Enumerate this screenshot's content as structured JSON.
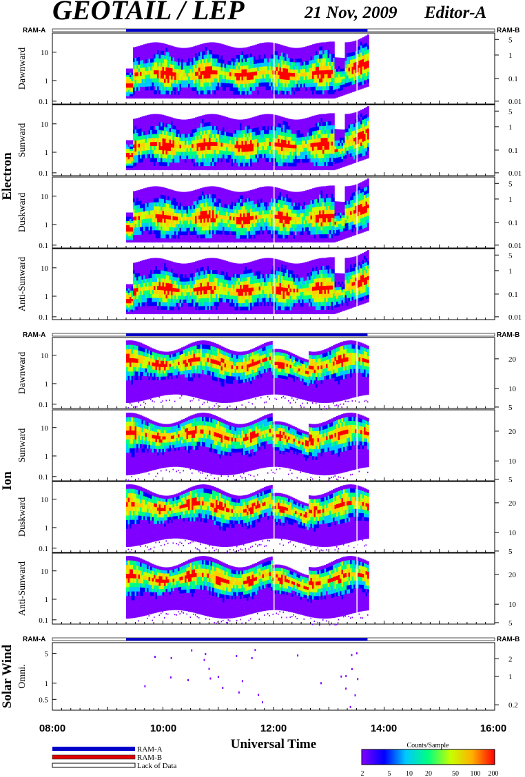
{
  "header": {
    "title": "GEOTAIL / LEP",
    "date": "21 Nov, 2009",
    "editor": "Editor-A"
  },
  "status_labels": {
    "left": "RAM-A",
    "right": "RAM-B"
  },
  "groups": [
    {
      "name": "Electron",
      "panels": [
        "Dawnward",
        "Sunward",
        "Duskward",
        "Anti-Sunward"
      ]
    },
    {
      "name": "Ion",
      "panels": [
        "Dawnward",
        "Sunward",
        "Duskward",
        "Anti-Sunward"
      ]
    },
    {
      "name": "Solar Wind",
      "panels": [
        "Omni."
      ]
    }
  ],
  "axes": {
    "electron_left_ticks": [
      "10",
      "1",
      "0.1"
    ],
    "electron_right_ticks": [
      "5",
      "1",
      "0.1",
      "0.01"
    ],
    "ion_left_ticks": [
      "10",
      "1",
      "0.1"
    ],
    "ion_right_ticks": [
      "20",
      "10",
      "5"
    ],
    "solar_left_ticks": [
      "5",
      "1",
      "0.5"
    ],
    "solar_right_ticks": [
      "2",
      "1",
      "0.2"
    ],
    "time_ticks": [
      "08:00",
      "10:00",
      "12:00",
      "14:00",
      "16:00"
    ],
    "xlabel": "Universal Time"
  },
  "legend": {
    "items": [
      "RAM-A",
      "RAM-B",
      "Lack of Data"
    ],
    "colors": [
      "#0000c8",
      "#e00000",
      "#ffffff"
    ]
  },
  "colorbar": {
    "title": "Counts/Sample",
    "ticks": [
      "2",
      "5",
      "10",
      "20",
      "50",
      "100",
      "200"
    ]
  },
  "chart_data": {
    "type": "heatmap",
    "x_range": [
      "08:00",
      "16:00"
    ],
    "data_coverage": [
      "09:20",
      "13:42"
    ],
    "ram_a_interval": [
      "09:20",
      "13:42"
    ],
    "electron_ylim": [
      0.08,
      40
    ],
    "electron_band_peak_level": [
      0.5,
      2
    ],
    "ion_ylim": [
      0.08,
      40
    ],
    "color_scale": [
      "#8000ff",
      "#0000ff",
      "#00c8ff",
      "#00ff80",
      "#c8ff00",
      "#ffd000",
      "#ff0000"
    ],
    "color_range": [
      2,
      200
    ]
  }
}
